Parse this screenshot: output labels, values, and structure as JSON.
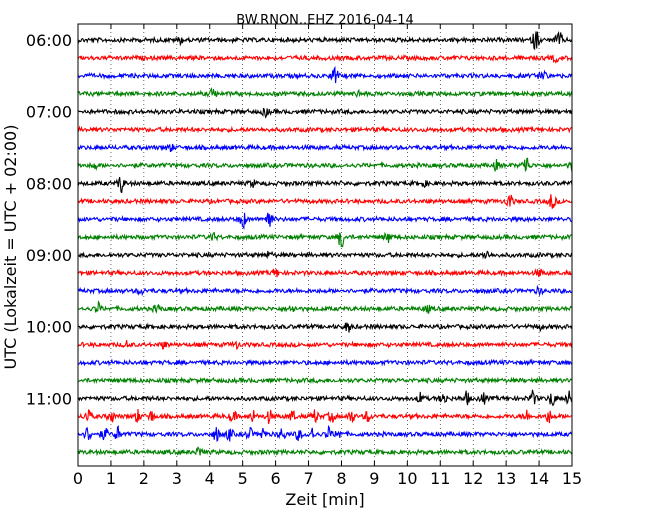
{
  "chart_data": {
    "type": "line",
    "title": "BW.RNON..EHZ 2016-04-14",
    "xlabel": "Zeit  [min]",
    "ylabel": "UTC (Lokalzeit = UTC + 02:00)",
    "xlim": [
      0,
      15
    ],
    "x_ticks": [
      "0",
      "1",
      "2",
      "3",
      "4",
      "5",
      "6",
      "7",
      "8",
      "9",
      "10",
      "11",
      "12",
      "13",
      "14",
      "15"
    ],
    "y_ticks": [
      "06:00",
      "07:00",
      "08:00",
      "09:00",
      "10:00",
      "11:00"
    ],
    "trace_colors": [
      "#000000",
      "#ff0000",
      "#0000ff",
      "#008000"
    ],
    "grid": "vertical dotted at each minute",
    "series": [
      {
        "label_time": "06:00",
        "color": "#000000",
        "events": [
          [
            3.1,
            0.5
          ],
          [
            13.9,
            1.8
          ],
          [
            14.6,
            1.4
          ]
        ]
      },
      {
        "label_time": "06:15",
        "color": "#ff0000",
        "events": [
          [
            14.5,
            0.5
          ]
        ]
      },
      {
        "label_time": "06:30",
        "color": "#0000ff",
        "events": [
          [
            7.8,
            1.4
          ],
          [
            14.1,
            1.2
          ]
        ]
      },
      {
        "label_time": "06:45",
        "color": "#008000",
        "events": [
          [
            4.1,
            0.8
          ],
          [
            8.5,
            0.4
          ]
        ]
      },
      {
        "label_time": "07:00",
        "color": "#000000",
        "events": [
          [
            5.7,
            0.7
          ]
        ]
      },
      {
        "label_time": "07:15",
        "color": "#ff0000",
        "events": []
      },
      {
        "label_time": "07:30",
        "color": "#0000ff",
        "events": [
          [
            2.8,
            0.6
          ]
        ]
      },
      {
        "label_time": "07:45",
        "color": "#008000",
        "events": [
          [
            0.5,
            0.5
          ],
          [
            12.7,
            0.7
          ],
          [
            13.6,
            1.6
          ],
          [
            15.0,
            0.9
          ]
        ]
      },
      {
        "label_time": "08:00",
        "color": "#000000",
        "events": [
          [
            1.3,
            1.5
          ],
          [
            5.3,
            0.5
          ],
          [
            10.5,
            0.4
          ]
        ]
      },
      {
        "label_time": "08:15",
        "color": "#ff0000",
        "events": [
          [
            13.1,
            1.2
          ],
          [
            14.4,
            1.3
          ]
        ]
      },
      {
        "label_time": "08:30",
        "color": "#0000ff",
        "events": [
          [
            5.0,
            1.5
          ],
          [
            5.8,
            1.8
          ]
        ]
      },
      {
        "label_time": "08:45",
        "color": "#008000",
        "events": [
          [
            4.1,
            0.6
          ],
          [
            8.0,
            1.8
          ],
          [
            9.4,
            0.8
          ]
        ]
      },
      {
        "label_time": "09:00",
        "color": "#000000",
        "events": [
          [
            5.8,
            0.5
          ],
          [
            12.4,
            0.7
          ]
        ]
      },
      {
        "label_time": "09:15",
        "color": "#ff0000",
        "events": [
          [
            6.0,
            0.7
          ],
          [
            14.0,
            0.6
          ]
        ]
      },
      {
        "label_time": "09:30",
        "color": "#0000ff",
        "events": [
          [
            1.9,
            0.5
          ],
          [
            14.0,
            0.5
          ]
        ]
      },
      {
        "label_time": "09:45",
        "color": "#008000",
        "events": [
          [
            0.6,
            0.9
          ],
          [
            2.4,
            0.6
          ],
          [
            6.5,
            0.6
          ],
          [
            10.6,
            0.6
          ]
        ]
      },
      {
        "label_time": "10:00",
        "color": "#000000",
        "events": [
          [
            8.2,
            0.8
          ],
          [
            14.0,
            0.4
          ]
        ]
      },
      {
        "label_time": "10:15",
        "color": "#ff0000",
        "events": [
          [
            1.5,
            0.6
          ],
          [
            2.6,
            0.5
          ],
          [
            4.8,
            0.5
          ]
        ]
      },
      {
        "label_time": "10:30",
        "color": "#0000ff",
        "events": []
      },
      {
        "label_time": "10:45",
        "color": "#008000",
        "events": []
      },
      {
        "label_time": "11:00",
        "color": "#000000",
        "events": [
          [
            10.4,
            0.8
          ],
          [
            11.1,
            1.0
          ],
          [
            11.8,
            1.0
          ],
          [
            12.3,
            0.8
          ],
          [
            13.8,
            1.2
          ],
          [
            14.4,
            1.3
          ],
          [
            14.9,
            1.0
          ]
        ]
      },
      {
        "label_time": "11:15",
        "color": "#ff0000",
        "events": [
          [
            0.3,
            1.2
          ],
          [
            1.0,
            1.0
          ],
          [
            1.8,
            1.0
          ],
          [
            2.2,
            1.0
          ],
          [
            4.7,
            1.0
          ],
          [
            5.3,
            1.0
          ],
          [
            5.8,
            1.0
          ],
          [
            6.5,
            0.9
          ],
          [
            7.2,
            1.0
          ],
          [
            7.7,
            0.9
          ],
          [
            8.3,
            1.0
          ],
          [
            8.8,
            0.9
          ],
          [
            13.6,
            1.0
          ],
          [
            14.3,
            1.0
          ]
        ]
      },
      {
        "label_time": "11:30",
        "color": "#0000ff",
        "events": [
          [
            0.3,
            1.2
          ],
          [
            0.8,
            1.0
          ],
          [
            1.2,
            1.1
          ],
          [
            4.2,
            1.1
          ],
          [
            4.6,
            1.0
          ],
          [
            5.2,
            1.0
          ],
          [
            5.6,
            1.0
          ],
          [
            6.2,
            1.0
          ],
          [
            6.7,
            0.9
          ],
          [
            7.1,
            1.0
          ],
          [
            7.6,
            1.0
          ],
          [
            7.9,
            0.8
          ]
        ]
      },
      {
        "label_time": "11:45",
        "color": "#008000",
        "events": [
          [
            3.7,
            0.8
          ]
        ]
      }
    ]
  }
}
